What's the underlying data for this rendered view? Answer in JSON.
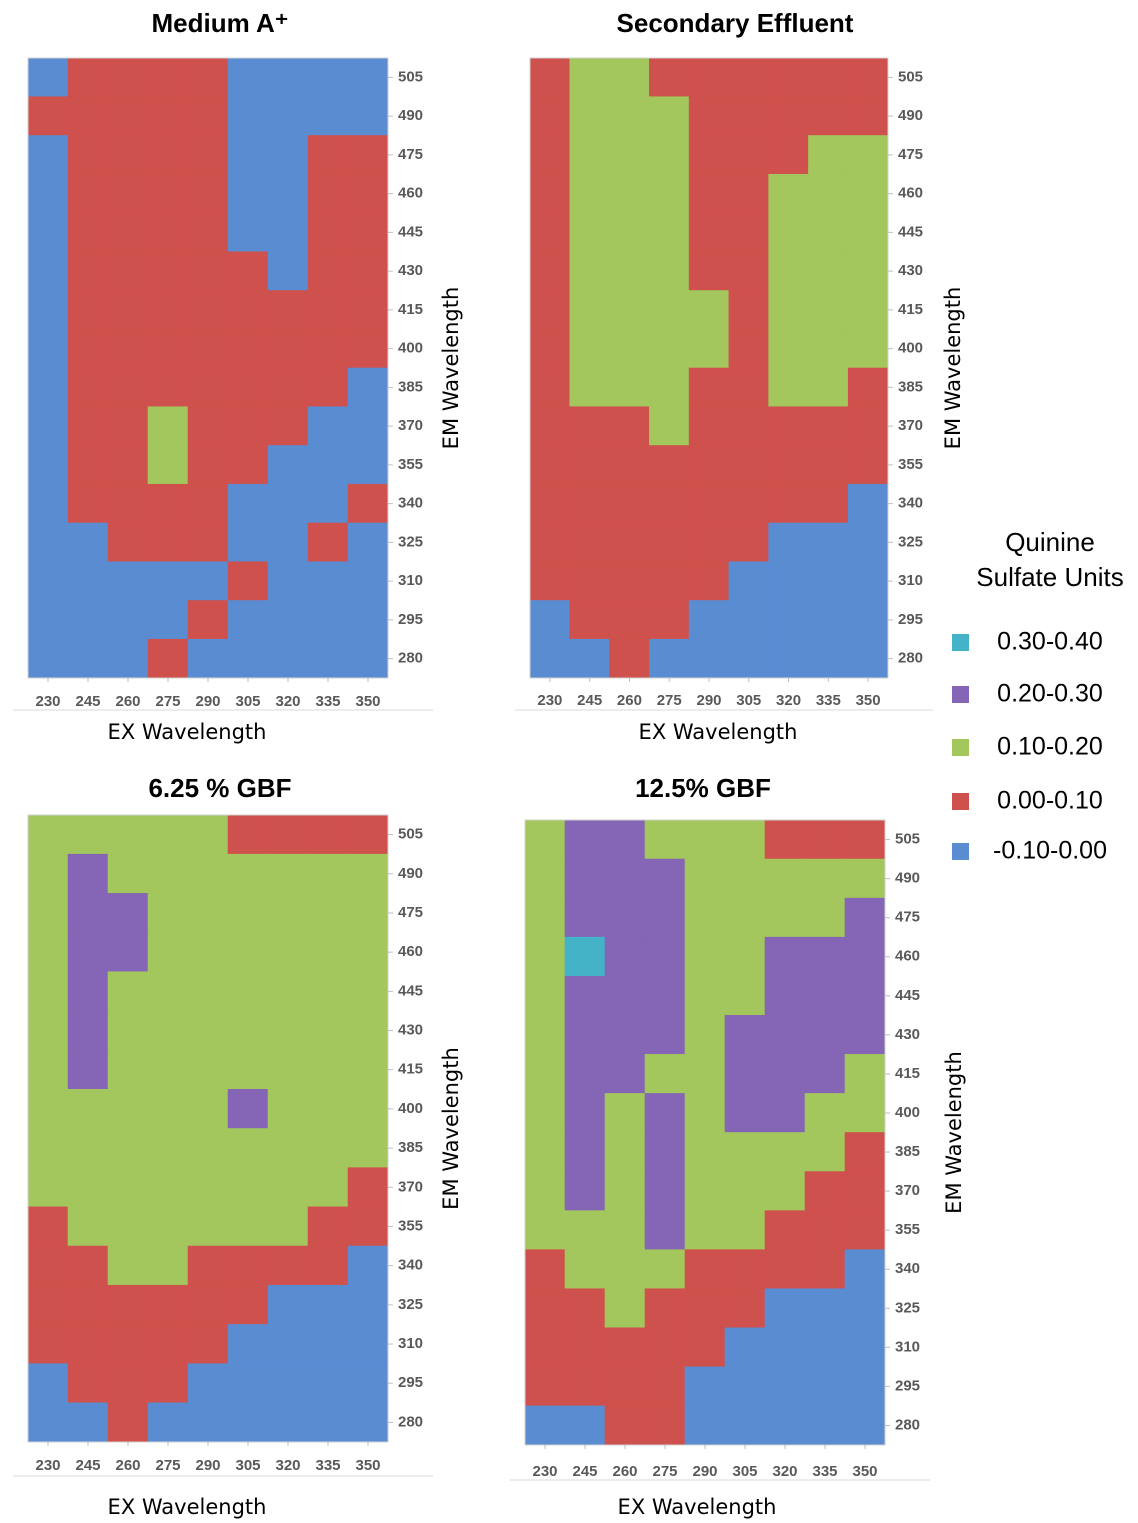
{
  "chart_data": [
    {
      "type": "heatmap",
      "title": "Medium A⁺",
      "xlabel": "EX Wavelength",
      "ylabel": "EM Wavelength",
      "x": [
        230,
        245,
        260,
        275,
        290,
        305,
        320,
        335,
        350
      ],
      "y": [
        505,
        490,
        475,
        460,
        445,
        430,
        415,
        400,
        385,
        370,
        355,
        340,
        325,
        310,
        295,
        280
      ],
      "z": [
        [
          -0.05,
          0.05,
          0.05,
          0.05,
          0.05,
          -0.05,
          -0.05,
          -0.05,
          -0.05
        ],
        [
          0.05,
          0.05,
          0.05,
          0.05,
          0.05,
          -0.05,
          -0.05,
          -0.05,
          -0.05
        ],
        [
          -0.05,
          0.05,
          0.05,
          0.05,
          0.05,
          -0.05,
          -0.05,
          0.05,
          0.05
        ],
        [
          -0.05,
          0.05,
          0.05,
          0.05,
          0.05,
          -0.05,
          -0.05,
          0.05,
          0.05
        ],
        [
          -0.05,
          0.05,
          0.05,
          0.05,
          0.05,
          -0.05,
          -0.05,
          0.05,
          0.05
        ],
        [
          -0.05,
          0.05,
          0.05,
          0.05,
          0.05,
          0.05,
          -0.05,
          0.05,
          0.05
        ],
        [
          -0.05,
          0.05,
          0.05,
          0.05,
          0.05,
          0.05,
          0.05,
          0.05,
          0.05
        ],
        [
          -0.05,
          0.05,
          0.05,
          0.05,
          0.05,
          0.05,
          0.05,
          0.05,
          0.05
        ],
        [
          -0.05,
          0.05,
          0.05,
          0.05,
          0.05,
          0.05,
          0.05,
          0.05,
          -0.05
        ],
        [
          -0.05,
          0.05,
          0.05,
          0.15,
          0.05,
          0.05,
          0.05,
          -0.05,
          -0.05
        ],
        [
          -0.05,
          0.05,
          0.05,
          0.15,
          0.05,
          0.05,
          -0.05,
          -0.05,
          -0.05
        ],
        [
          -0.05,
          0.05,
          0.05,
          0.05,
          0.05,
          -0.05,
          -0.05,
          -0.05,
          0.05
        ],
        [
          -0.05,
          -0.05,
          0.05,
          0.05,
          0.05,
          -0.05,
          -0.05,
          0.05,
          -0.05
        ],
        [
          -0.05,
          -0.05,
          -0.05,
          -0.05,
          -0.05,
          0.05,
          -0.05,
          -0.05,
          -0.05
        ],
        [
          -0.05,
          -0.05,
          -0.05,
          -0.05,
          0.05,
          -0.05,
          -0.05,
          -0.05,
          -0.05
        ],
        [
          -0.05,
          -0.05,
          -0.05,
          0.05,
          -0.05,
          -0.05,
          -0.05,
          -0.05,
          -0.05
        ]
      ],
      "xlim": [
        222.5,
        357.5
      ],
      "ylim": [
        272.5,
        512.5
      ],
      "xticks": [
        230,
        245,
        260,
        275,
        290,
        305,
        320,
        335,
        350
      ],
      "yticks": [
        280,
        295,
        310,
        325,
        340,
        355,
        370,
        385,
        400,
        415,
        430,
        445,
        460,
        475,
        490,
        505
      ]
    },
    {
      "type": "heatmap",
      "title": "Secondary Effluent",
      "xlabel": "EX Wavelength",
      "ylabel": "EM Wavelength",
      "x": [
        230,
        245,
        260,
        275,
        290,
        305,
        320,
        335,
        350
      ],
      "y": [
        505,
        490,
        475,
        460,
        445,
        430,
        415,
        400,
        385,
        370,
        355,
        340,
        325,
        310,
        295,
        280
      ],
      "z": [
        [
          0.05,
          0.15,
          0.15,
          0.05,
          0.05,
          0.05,
          0.05,
          0.05,
          0.05
        ],
        [
          0.05,
          0.15,
          0.15,
          0.15,
          0.05,
          0.05,
          0.05,
          0.05,
          0.05
        ],
        [
          0.05,
          0.15,
          0.15,
          0.15,
          0.05,
          0.05,
          0.05,
          0.15,
          0.15
        ],
        [
          0.05,
          0.15,
          0.15,
          0.15,
          0.05,
          0.05,
          0.15,
          0.15,
          0.15
        ],
        [
          0.05,
          0.15,
          0.15,
          0.15,
          0.05,
          0.05,
          0.15,
          0.15,
          0.15
        ],
        [
          0.05,
          0.15,
          0.15,
          0.15,
          0.05,
          0.05,
          0.15,
          0.15,
          0.15
        ],
        [
          0.05,
          0.15,
          0.15,
          0.15,
          0.15,
          0.05,
          0.15,
          0.15,
          0.15
        ],
        [
          0.05,
          0.15,
          0.15,
          0.15,
          0.15,
          0.05,
          0.15,
          0.15,
          0.15
        ],
        [
          0.05,
          0.15,
          0.15,
          0.15,
          0.05,
          0.05,
          0.15,
          0.15,
          0.05
        ],
        [
          0.05,
          0.05,
          0.05,
          0.15,
          0.05,
          0.05,
          0.05,
          0.05,
          0.05
        ],
        [
          0.05,
          0.05,
          0.05,
          0.05,
          0.05,
          0.05,
          0.05,
          0.05,
          0.05
        ],
        [
          0.05,
          0.05,
          0.05,
          0.05,
          0.05,
          0.05,
          0.05,
          0.05,
          -0.05
        ],
        [
          0.05,
          0.05,
          0.05,
          0.05,
          0.05,
          0.05,
          -0.05,
          -0.05,
          -0.05
        ],
        [
          0.05,
          0.05,
          0.05,
          0.05,
          0.05,
          -0.05,
          -0.05,
          -0.05,
          -0.05
        ],
        [
          -0.05,
          0.05,
          0.05,
          0.05,
          -0.05,
          -0.05,
          -0.05,
          -0.05,
          -0.05
        ],
        [
          -0.05,
          -0.05,
          0.05,
          -0.05,
          -0.05,
          -0.05,
          -0.05,
          -0.05,
          -0.05
        ]
      ],
      "xlim": [
        222.5,
        357.5
      ],
      "ylim": [
        272.5,
        512.5
      ],
      "xticks": [
        230,
        245,
        260,
        275,
        290,
        305,
        320,
        335,
        350
      ],
      "yticks": [
        280,
        295,
        310,
        325,
        340,
        355,
        370,
        385,
        400,
        415,
        430,
        445,
        460,
        475,
        490,
        505
      ]
    },
    {
      "type": "heatmap",
      "title": "6.25 % GBF",
      "xlabel": "EX Wavelength",
      "ylabel": "EM Wavelength",
      "x": [
        230,
        245,
        260,
        275,
        290,
        305,
        320,
        335,
        350
      ],
      "y": [
        505,
        490,
        475,
        460,
        445,
        430,
        415,
        400,
        385,
        370,
        355,
        340,
        325,
        310,
        295,
        280
      ],
      "z": [
        [
          0.15,
          0.15,
          0.15,
          0.15,
          0.15,
          0.05,
          0.05,
          0.05,
          0.05
        ],
        [
          0.15,
          0.25,
          0.15,
          0.15,
          0.15,
          0.15,
          0.15,
          0.15,
          0.15
        ],
        [
          0.15,
          0.25,
          0.25,
          0.15,
          0.15,
          0.15,
          0.15,
          0.15,
          0.15
        ],
        [
          0.15,
          0.25,
          0.25,
          0.15,
          0.15,
          0.15,
          0.15,
          0.15,
          0.15
        ],
        [
          0.15,
          0.25,
          0.15,
          0.15,
          0.15,
          0.15,
          0.15,
          0.15,
          0.15
        ],
        [
          0.15,
          0.25,
          0.15,
          0.15,
          0.15,
          0.15,
          0.15,
          0.15,
          0.15
        ],
        [
          0.15,
          0.25,
          0.15,
          0.15,
          0.15,
          0.15,
          0.15,
          0.15,
          0.15
        ],
        [
          0.15,
          0.15,
          0.15,
          0.15,
          0.15,
          0.25,
          0.15,
          0.15,
          0.15
        ],
        [
          0.15,
          0.15,
          0.15,
          0.15,
          0.15,
          0.15,
          0.15,
          0.15,
          0.15
        ],
        [
          0.15,
          0.15,
          0.15,
          0.15,
          0.15,
          0.15,
          0.15,
          0.15,
          0.05
        ],
        [
          0.05,
          0.15,
          0.15,
          0.15,
          0.15,
          0.15,
          0.15,
          0.05,
          0.05
        ],
        [
          0.05,
          0.05,
          0.15,
          0.15,
          0.05,
          0.05,
          0.05,
          0.05,
          -0.05
        ],
        [
          0.05,
          0.05,
          0.05,
          0.05,
          0.05,
          0.05,
          -0.05,
          -0.05,
          -0.05
        ],
        [
          0.05,
          0.05,
          0.05,
          0.05,
          0.05,
          -0.05,
          -0.05,
          -0.05,
          -0.05
        ],
        [
          -0.05,
          0.05,
          0.05,
          0.05,
          -0.05,
          -0.05,
          -0.05,
          -0.05,
          -0.05
        ],
        [
          -0.05,
          -0.05,
          0.05,
          -0.05,
          -0.05,
          -0.05,
          -0.05,
          -0.05,
          -0.05
        ]
      ],
      "xlim": [
        222.5,
        357.5
      ],
      "ylim": [
        272.5,
        512.5
      ],
      "xticks": [
        230,
        245,
        260,
        275,
        290,
        305,
        320,
        335,
        350
      ],
      "yticks": [
        280,
        295,
        310,
        325,
        340,
        355,
        370,
        385,
        400,
        415,
        430,
        445,
        460,
        475,
        490,
        505
      ]
    },
    {
      "type": "heatmap",
      "title": "12.5% GBF",
      "xlabel": "EX Wavelength",
      "ylabel": "EM Wavelength",
      "x": [
        230,
        245,
        260,
        275,
        290,
        305,
        320,
        335,
        350
      ],
      "y": [
        505,
        490,
        475,
        460,
        445,
        430,
        415,
        400,
        385,
        370,
        355,
        340,
        325,
        310,
        295,
        280
      ],
      "z": [
        [
          0.15,
          0.25,
          0.25,
          0.15,
          0.15,
          0.15,
          0.05,
          0.05,
          0.05
        ],
        [
          0.15,
          0.25,
          0.25,
          0.25,
          0.15,
          0.15,
          0.15,
          0.15,
          0.15
        ],
        [
          0.15,
          0.25,
          0.25,
          0.25,
          0.15,
          0.15,
          0.15,
          0.15,
          0.25
        ],
        [
          0.15,
          0.35,
          0.25,
          0.25,
          0.15,
          0.15,
          0.25,
          0.25,
          0.25
        ],
        [
          0.15,
          0.25,
          0.25,
          0.25,
          0.15,
          0.15,
          0.25,
          0.25,
          0.25
        ],
        [
          0.15,
          0.25,
          0.25,
          0.25,
          0.15,
          0.25,
          0.25,
          0.25,
          0.25
        ],
        [
          0.15,
          0.25,
          0.25,
          0.15,
          0.15,
          0.25,
          0.25,
          0.25,
          0.15
        ],
        [
          0.15,
          0.25,
          0.15,
          0.25,
          0.15,
          0.25,
          0.25,
          0.15,
          0.15
        ],
        [
          0.15,
          0.25,
          0.15,
          0.25,
          0.15,
          0.15,
          0.15,
          0.15,
          0.05
        ],
        [
          0.15,
          0.25,
          0.15,
          0.25,
          0.15,
          0.15,
          0.15,
          0.05,
          0.05
        ],
        [
          0.15,
          0.15,
          0.15,
          0.25,
          0.15,
          0.15,
          0.05,
          0.05,
          0.05
        ],
        [
          0.05,
          0.15,
          0.15,
          0.15,
          0.05,
          0.05,
          0.05,
          0.05,
          -0.05
        ],
        [
          0.05,
          0.05,
          0.15,
          0.05,
          0.05,
          0.05,
          -0.05,
          -0.05,
          -0.05
        ],
        [
          0.05,
          0.05,
          0.05,
          0.05,
          0.05,
          -0.05,
          -0.05,
          -0.05,
          -0.05
        ],
        [
          0.05,
          0.05,
          0.05,
          0.05,
          -0.05,
          -0.05,
          -0.05,
          -0.05,
          -0.05
        ],
        [
          -0.05,
          -0.05,
          0.05,
          0.05,
          -0.05,
          -0.05,
          -0.05,
          -0.05,
          -0.05
        ]
      ],
      "xlim": [
        222.5,
        357.5
      ],
      "ylim": [
        272.5,
        512.5
      ],
      "xticks": [
        230,
        245,
        260,
        275,
        290,
        305,
        320,
        335,
        350
      ],
      "yticks": [
        280,
        295,
        310,
        325,
        340,
        355,
        370,
        385,
        400,
        415,
        430,
        445,
        460,
        475,
        490,
        505
      ]
    }
  ],
  "legend": {
    "title": "Quinine Sulfate Units",
    "items": [
      {
        "label": "0.30-0.40",
        "color": "#44b3c8",
        "min": 0.3,
        "max": 0.4
      },
      {
        "label": "0.20-0.30",
        "color": "#8565b5",
        "min": 0.2,
        "max": 0.3
      },
      {
        "label": "0.10-0.20",
        "color": "#a3c75c",
        "min": 0.1,
        "max": 0.2
      },
      {
        "label": "0.00-0.10",
        "color": "#cf514d",
        "min": 0.0,
        "max": 0.1
      },
      {
        "label": "-0.10-0.00",
        "color": "#5a8cd2",
        "min": -0.1,
        "max": 0.0
      }
    ]
  }
}
